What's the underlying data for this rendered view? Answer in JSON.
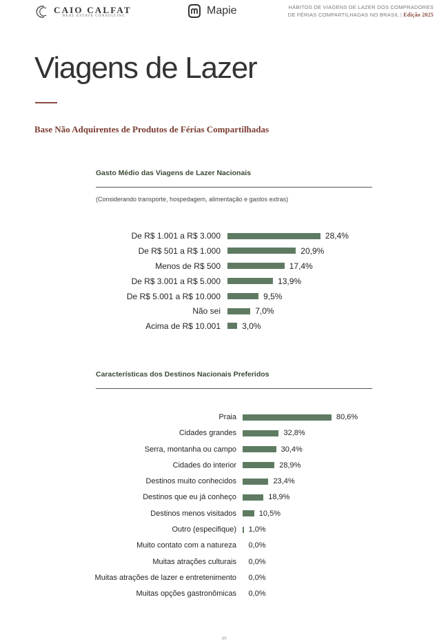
{
  "header": {
    "brand_name": "CAIO CALFAT",
    "brand_sub": "REAL ESTATE CONSULTING",
    "partner_name": "Mapie",
    "report_line1": "HÁBITOS DE VIAGENS DE LAZER DOS COMPRADORES",
    "report_line2": "DE FÉRIAS COMPARTILHADAS NO BRASIL",
    "edition": "Edição 2025"
  },
  "page": {
    "title": "Viagens de Lazer",
    "subtitle": "Base Não Adquirentes de Produtos de Férias Compartilhadas",
    "number": "49"
  },
  "colors": {
    "bar": "#5e7b61",
    "accent": "#8b4a3e"
  },
  "chart_data": [
    {
      "type": "bar",
      "orientation": "horizontal",
      "title": "Gasto Médio das Viagens de Lazer Nacionais",
      "subtitle": "(Considerando transporte, hospedagem, alimentação e gastos extras)",
      "categories": [
        "De R$ 1.001 a R$ 3.000",
        "De R$ 501 a R$ 1.000",
        "Menos de R$ 500",
        "De R$ 3.001 a R$ 5.000",
        "De R$ 5.001 a R$ 10.000",
        "Não sei",
        "Acima de R$ 10.001"
      ],
      "values": [
        28.4,
        20.9,
        17.4,
        13.9,
        9.5,
        7.0,
        3.0
      ],
      "value_labels": [
        "28,4%",
        "20,9%",
        "17,4%",
        "13,9%",
        "9,5%",
        "7,0%",
        "3,0%"
      ]
    },
    {
      "type": "bar",
      "orientation": "horizontal",
      "title": "Características dos Destinos Nacionais Preferidos",
      "categories": [
        "Praia",
        "Cidades grandes",
        "Serra, montanha ou campo",
        "Cidades do interior",
        "Destinos muito conhecidos",
        "Destinos que eu já conheço",
        "Destinos menos visitados",
        "Outro (especifique)",
        "Muito contato com a natureza",
        "Muitas atrações culturais",
        "Muitas atrações de lazer e entretenimento",
        "Muitas opções gastronômicas"
      ],
      "values": [
        80.6,
        32.8,
        30.4,
        28.9,
        23.4,
        18.9,
        10.5,
        1.0,
        0.0,
        0.0,
        0.0,
        0.0
      ],
      "value_labels": [
        "80,6%",
        "32,8%",
        "30,4%",
        "28,9%",
        "23,4%",
        "18,9%",
        "10,5%",
        "1,0%",
        "0,0%",
        "0,0%",
        "0,0%",
        "0,0%"
      ]
    }
  ]
}
